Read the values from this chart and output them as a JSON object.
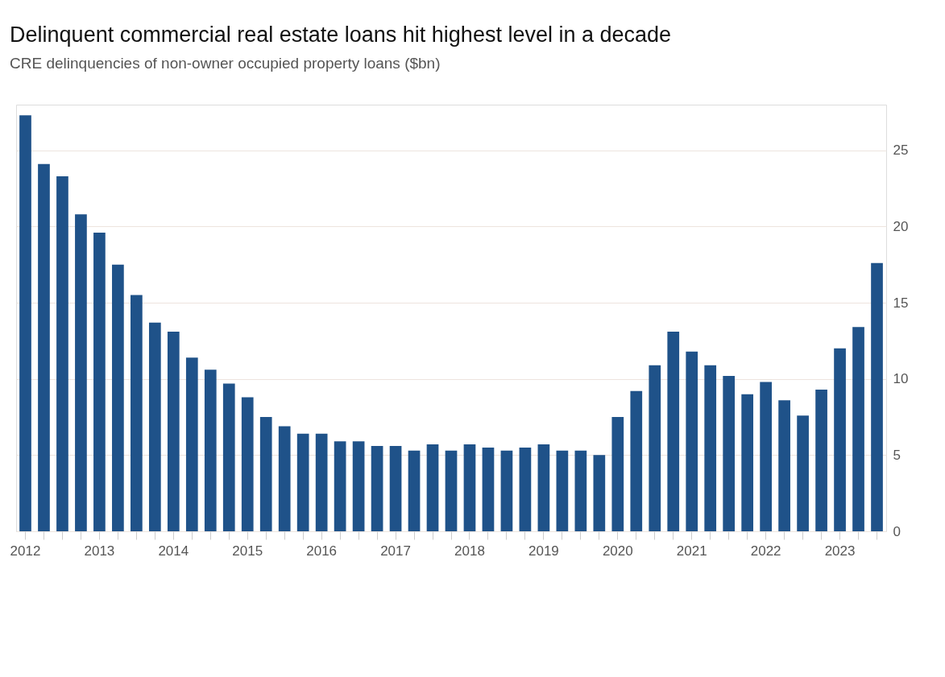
{
  "chart_data": {
    "type": "bar",
    "title": "Delinquent commercial real estate loans hit highest level in a decade",
    "subtitle": "CRE delinquencies of non-owner occupied property loans ($bn)",
    "categories": [
      "2012",
      null,
      null,
      null,
      "2013",
      null,
      null,
      null,
      "2014",
      null,
      null,
      null,
      "2015",
      null,
      null,
      null,
      "2016",
      null,
      null,
      null,
      "2017",
      null,
      null,
      null,
      "2018",
      null,
      null,
      null,
      "2019",
      null,
      null,
      null,
      "2020",
      null,
      null,
      null,
      "2021",
      null,
      null,
      null,
      "2022",
      null,
      null,
      null,
      "2023",
      null,
      null
    ],
    "values": [
      27.3,
      24.1,
      23.3,
      20.8,
      19.6,
      17.5,
      15.5,
      13.7,
      13.1,
      11.4,
      10.6,
      9.7,
      8.8,
      7.5,
      6.9,
      6.4,
      6.4,
      5.9,
      5.9,
      5.6,
      5.6,
      5.3,
      5.7,
      5.3,
      5.7,
      5.5,
      5.3,
      5.5,
      5.7,
      5.3,
      5.3,
      5.0,
      7.5,
      9.2,
      10.9,
      13.1,
      11.8,
      10.9,
      10.2,
      9.0,
      9.8,
      8.6,
      7.6,
      9.3,
      12.0,
      13.4,
      17.6
    ],
    "color": "#1f5289",
    "ylim": [
      0,
      28
    ],
    "yticks": [
      0,
      5,
      10,
      15,
      20,
      25
    ],
    "grid": "y"
  }
}
